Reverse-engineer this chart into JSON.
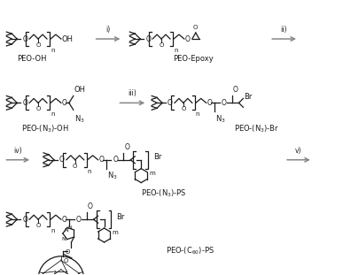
{
  "background_color": "#ffffff",
  "line_color": "#1a1a1a",
  "arrow_color": "#888888",
  "text_color": "#1a1a1a",
  "fig_width": 3.87,
  "fig_height": 3.11,
  "dpi": 100,
  "labels": {
    "compound1": "PEO-OH",
    "compound2": "PEO-Epoxy",
    "compound3": "PEO-(N$_3$)-OH",
    "compound4": "PEO-(N$_3$)-Br",
    "compound5": "PEO-(N$_3$)-PS",
    "compound6": "PEO-(C$_{60}$)-PS"
  },
  "steps": [
    "i)",
    "ii)",
    "iii)",
    "iv)",
    "v)"
  ]
}
